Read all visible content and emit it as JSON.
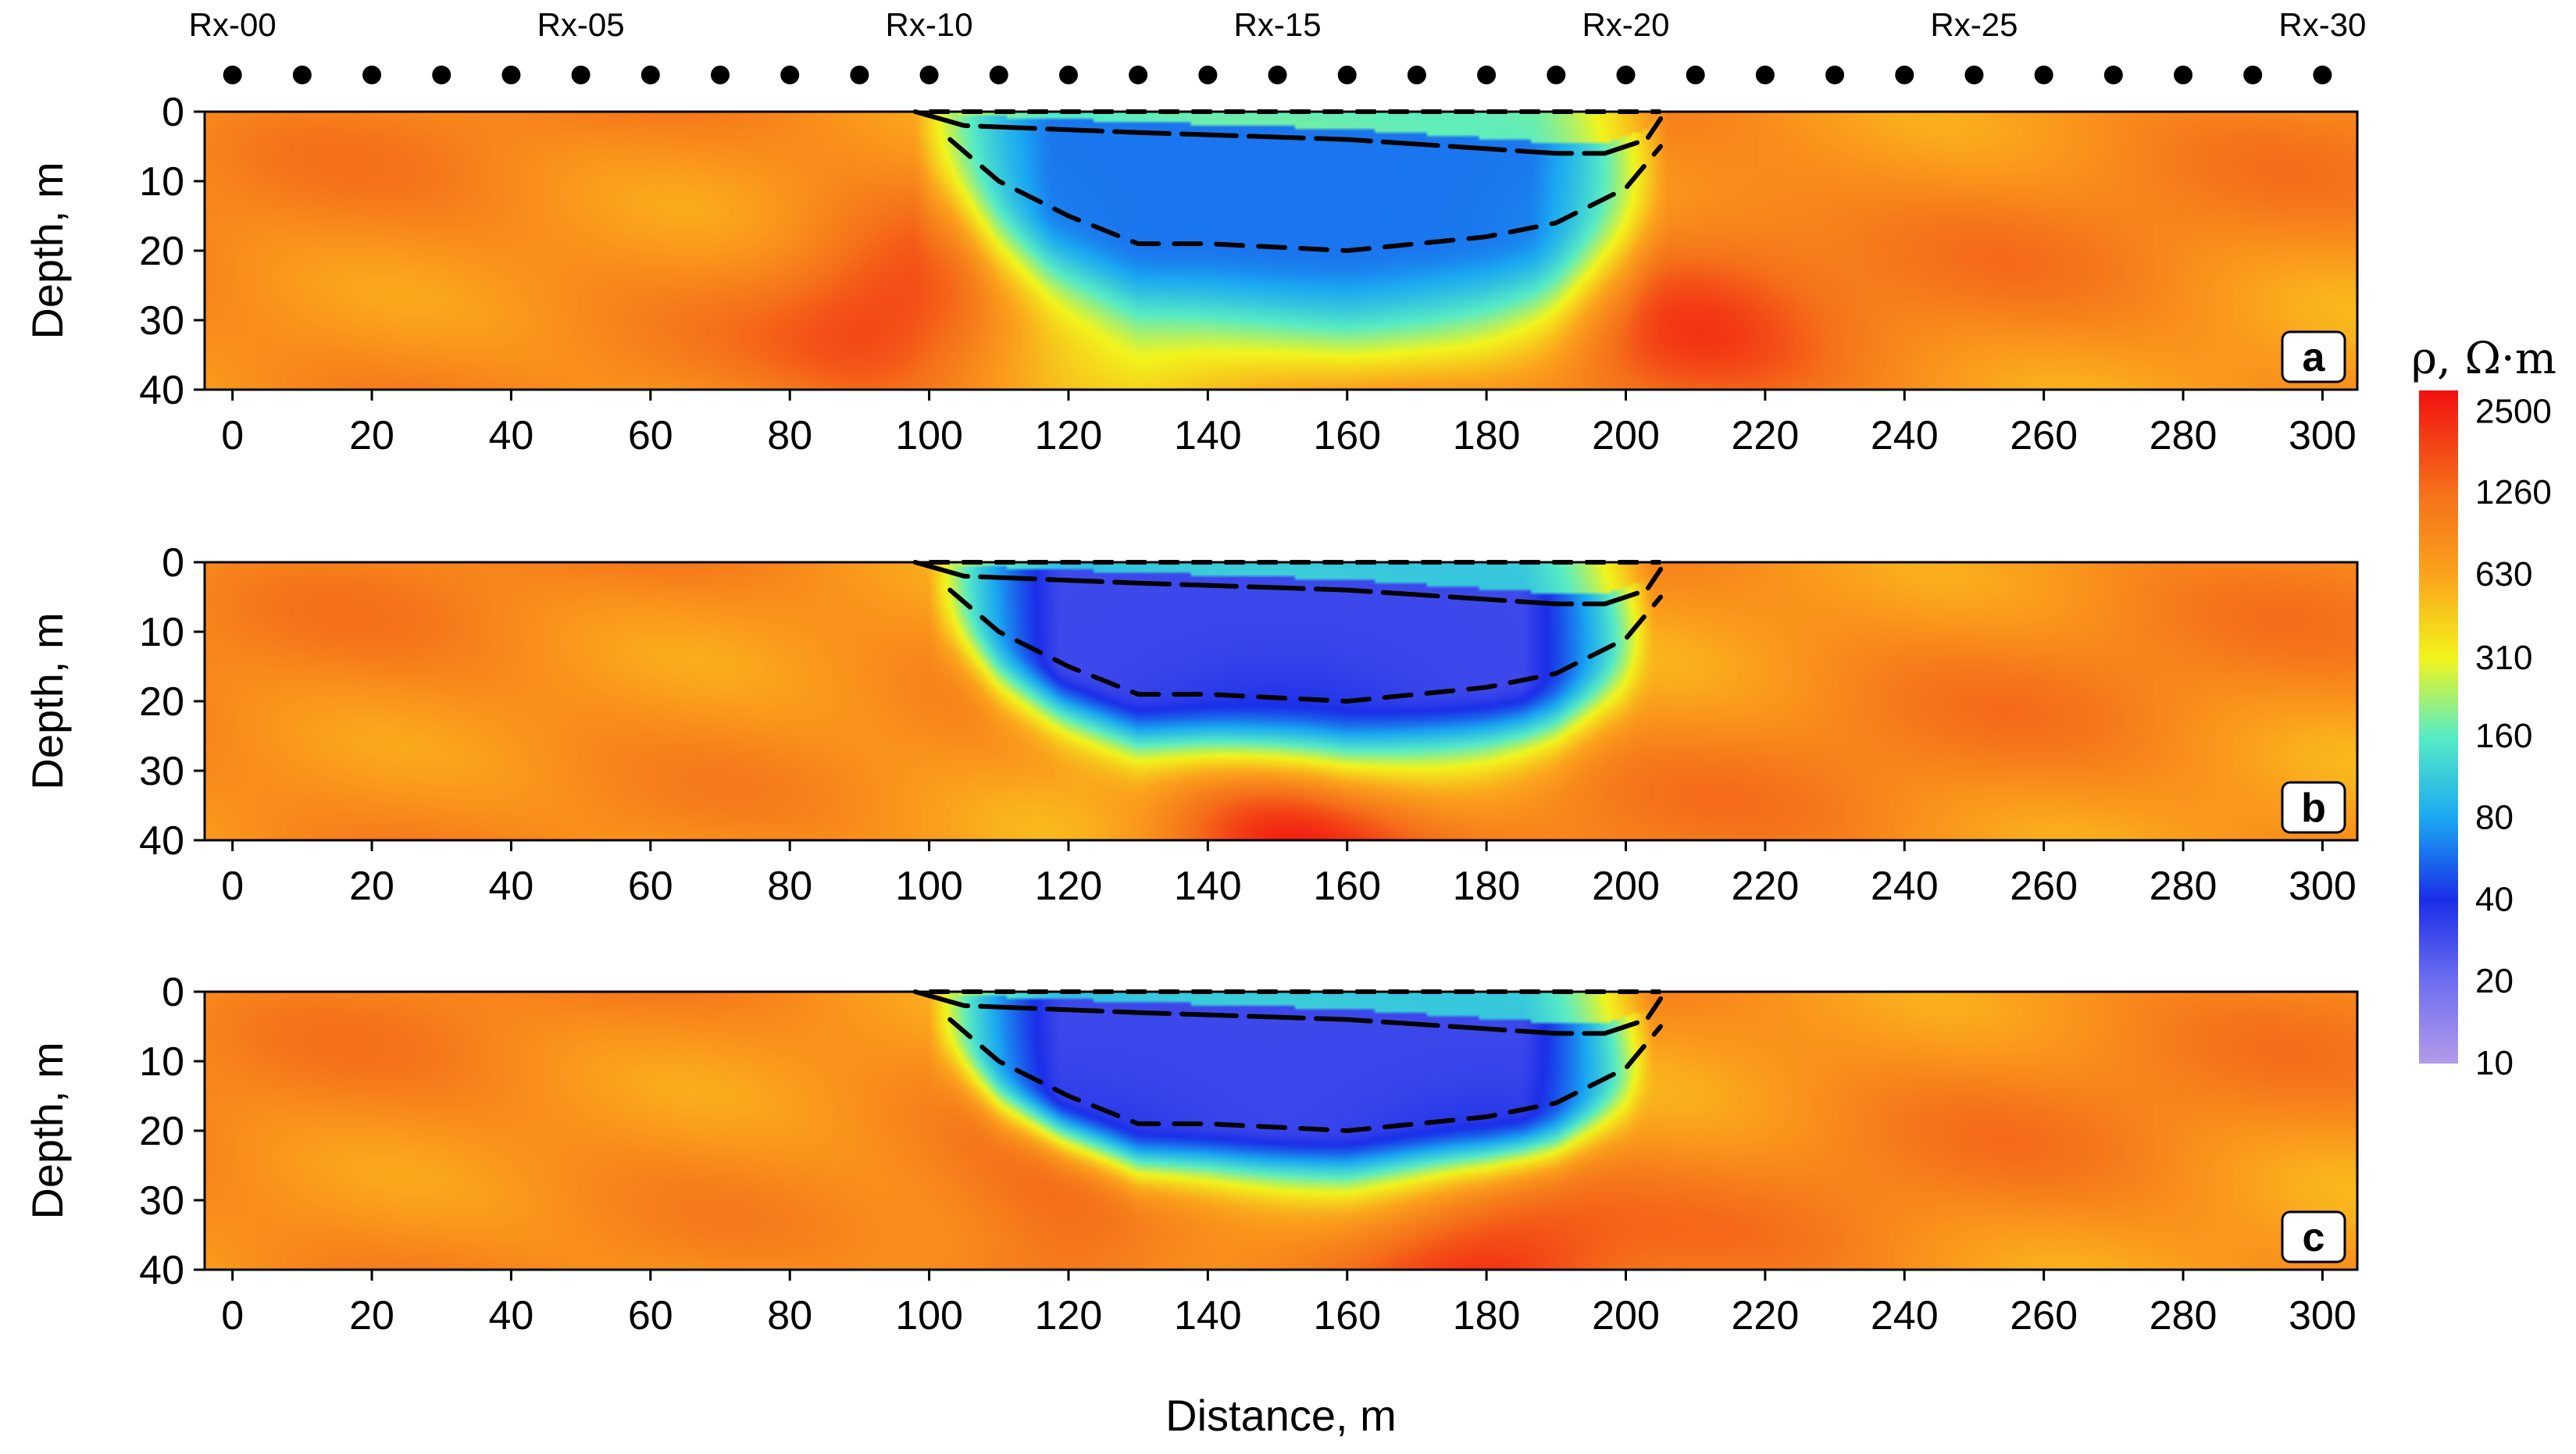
{
  "receivers": {
    "labels": [
      "Rx-00",
      "Rx-05",
      "Rx-10",
      "Rx-15",
      "Rx-20",
      "Rx-25",
      "Rx-30"
    ],
    "label_positions_m": [
      0,
      50,
      100,
      150,
      200,
      250,
      300
    ],
    "marker_positions_m": [
      0,
      10,
      20,
      30,
      40,
      50,
      60,
      70,
      80,
      90,
      100,
      110,
      120,
      130,
      140,
      150,
      160,
      170,
      180,
      190,
      200,
      210,
      220,
      230,
      240,
      250,
      260,
      270,
      280,
      290,
      300
    ]
  },
  "chart_data": [
    {
      "type": "heatmap",
      "panel": "a",
      "ylabel": "Depth, m",
      "xlabel": "",
      "xlim": [
        -4,
        305
      ],
      "ylim": [
        40,
        0
      ],
      "x_ticks": [
        0,
        20,
        40,
        60,
        80,
        100,
        120,
        140,
        160,
        180,
        200,
        220,
        240,
        260,
        280,
        300
      ],
      "y_ticks": [
        0,
        10,
        20,
        30,
        40
      ],
      "background_rho": 800,
      "features": [
        {
          "kind": "conductor",
          "x_range": [
            98,
            206
          ],
          "min_rho": 60,
          "max_depth": 32,
          "note": "moderate contrast, smeared downward"
        },
        {
          "kind": "resistor",
          "x": 95,
          "depth": 30,
          "rho": 1800
        },
        {
          "kind": "resistor",
          "x": 210,
          "depth": 25,
          "rho": 1500
        }
      ],
      "outline": {
        "top": [
          [
            98,
            0
          ],
          [
            105,
            2
          ],
          [
            130,
            3
          ],
          [
            160,
            4
          ],
          [
            190,
            6
          ],
          [
            197,
            6
          ],
          [
            203,
            4
          ],
          [
            205,
            1
          ]
        ],
        "base": [
          [
            103,
            4
          ],
          [
            110,
            10
          ],
          [
            120,
            15
          ],
          [
            130,
            19
          ],
          [
            140,
            19
          ],
          [
            160,
            20
          ],
          [
            180,
            18
          ],
          [
            190,
            16
          ],
          [
            200,
            11
          ],
          [
            205,
            5
          ]
        ],
        "surface": [
          [
            100,
            0
          ],
          [
            205,
            0
          ]
        ]
      }
    },
    {
      "type": "heatmap",
      "panel": "b",
      "ylabel": "Depth, m",
      "xlabel": "",
      "xlim": [
        -4,
        305
      ],
      "ylim": [
        40,
        0
      ],
      "x_ticks": [
        0,
        20,
        40,
        60,
        80,
        100,
        120,
        140,
        160,
        180,
        200,
        220,
        240,
        260,
        280,
        300
      ],
      "y_ticks": [
        0,
        10,
        20,
        30,
        40
      ],
      "background_rho": 800,
      "features": [
        {
          "kind": "conductor",
          "x_range": [
            100,
            204
          ],
          "min_rho": 30,
          "max_depth": 26,
          "note": "strong, sharp lens"
        },
        {
          "kind": "resistor",
          "x": 150,
          "depth": 40,
          "rho": 2500
        }
      ],
      "outline": {
        "top": [
          [
            98,
            0
          ],
          [
            105,
            2
          ],
          [
            130,
            3
          ],
          [
            160,
            4
          ],
          [
            190,
            6
          ],
          [
            197,
            6
          ],
          [
            203,
            4
          ],
          [
            205,
            1
          ]
        ],
        "base": [
          [
            103,
            4
          ],
          [
            110,
            10
          ],
          [
            120,
            15
          ],
          [
            130,
            19
          ],
          [
            140,
            19
          ],
          [
            160,
            20
          ],
          [
            180,
            18
          ],
          [
            190,
            16
          ],
          [
            200,
            11
          ],
          [
            205,
            5
          ]
        ],
        "surface": [
          [
            100,
            0
          ],
          [
            205,
            0
          ]
        ]
      }
    },
    {
      "type": "heatmap",
      "panel": "c",
      "ylabel": "Depth, m",
      "xlabel": "Distance, m",
      "xlim": [
        -4,
        305
      ],
      "ylim": [
        40,
        0
      ],
      "x_ticks": [
        0,
        20,
        40,
        60,
        80,
        100,
        120,
        140,
        160,
        180,
        200,
        220,
        240,
        260,
        280,
        300
      ],
      "y_ticks": [
        0,
        10,
        20,
        30,
        40
      ],
      "background_rho": 800,
      "features": [
        {
          "kind": "conductor",
          "x_range": [
            100,
            204
          ],
          "min_rho": 30,
          "max_depth": 24,
          "note": "strong lens with yellow tail below x=150"
        },
        {
          "kind": "resistor",
          "x": 120,
          "depth": 38,
          "rho": 1800
        },
        {
          "kind": "resistor",
          "x": 180,
          "depth": 38,
          "rho": 1800
        }
      ],
      "outline": {
        "top": [
          [
            98,
            0
          ],
          [
            105,
            2
          ],
          [
            130,
            3
          ],
          [
            160,
            4
          ],
          [
            190,
            6
          ],
          [
            197,
            6
          ],
          [
            203,
            4
          ],
          [
            205,
            1
          ]
        ],
        "base": [
          [
            103,
            4
          ],
          [
            110,
            10
          ],
          [
            120,
            15
          ],
          [
            130,
            19
          ],
          [
            140,
            19
          ],
          [
            160,
            20
          ],
          [
            180,
            18
          ],
          [
            190,
            16
          ],
          [
            200,
            11
          ],
          [
            205,
            5
          ]
        ],
        "surface": [
          [
            100,
            0
          ],
          [
            205,
            0
          ]
        ]
      }
    }
  ],
  "colorbar": {
    "title": "ρ, Ω·m",
    "ticks": [
      10,
      20,
      40,
      80,
      160,
      310,
      630,
      1260,
      2500
    ],
    "tick_labels": [
      "10",
      "20",
      "40",
      "80",
      "160",
      "310",
      "630",
      "1260",
      "2500"
    ],
    "range": [
      10,
      3000
    ],
    "stops": [
      {
        "rho": 10,
        "color": "#b49bea"
      },
      {
        "rho": 20,
        "color": "#6e6ef0"
      },
      {
        "rho": 40,
        "color": "#1a2ee8"
      },
      {
        "rho": 80,
        "color": "#1aa8f2"
      },
      {
        "rho": 160,
        "color": "#58ecc4"
      },
      {
        "rho": 310,
        "color": "#f2f51c"
      },
      {
        "rho": 630,
        "color": "#fba21c"
      },
      {
        "rho": 1260,
        "color": "#f5701a"
      },
      {
        "rho": 3000,
        "color": "#f21010"
      }
    ]
  }
}
